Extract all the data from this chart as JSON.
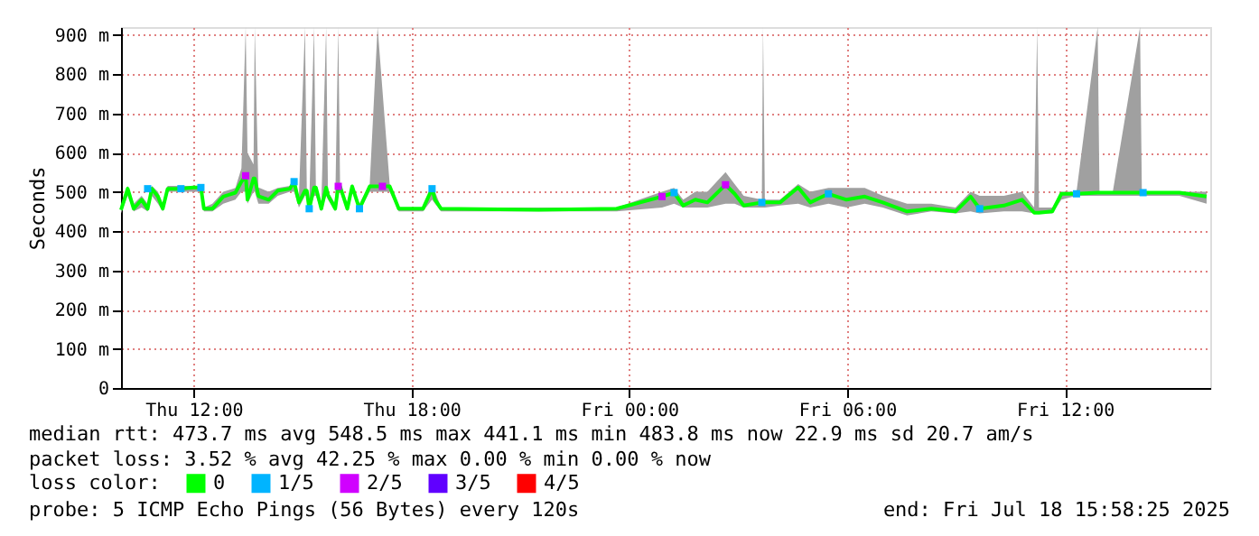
{
  "chart_data": {
    "type": "line",
    "ylabel": "Seconds",
    "legend_title": "loss color:",
    "legend": "bottom",
    "grid": true,
    "marker": "square",
    "xlim": [
      "2025-07-17T10:00",
      "2025-07-18T16:00"
    ],
    "ylim": [
      0,
      920
    ],
    "xticks": [
      {
        "value": "2025-07-17T12:00",
        "label": "Thu 12:00"
      },
      {
        "value": "2025-07-17T18:00",
        "label": "Thu 18:00"
      },
      {
        "value": "2025-07-18T00:00",
        "label": "Fri 00:00"
      },
      {
        "value": "2025-07-18T06:00",
        "label": "Fri 06:00"
      },
      {
        "value": "2025-07-18T12:00",
        "label": "Fri 12:00"
      }
    ],
    "yticks": [
      0,
      {
        "value": 100,
        "label": "100 m"
      },
      {
        "value": 200,
        "label": "200 m"
      },
      {
        "value": 300,
        "label": "300 m"
      },
      {
        "value": 400,
        "label": "400 m"
      },
      {
        "value": 500,
        "label": "500 m"
      },
      {
        "value": 600,
        "label": "600 m"
      },
      {
        "value": 700,
        "label": "700 m"
      },
      {
        "value": 800,
        "label": "800 m"
      },
      {
        "value": 900,
        "label": "900 m"
      }
    ],
    "annotations": [
      "median rtt:  473.7 ms avg  548.5 ms max  441.1 ms min  483.8 ms now  22.9 ms sd  20.7   am/s",
      "packet loss: 3.52 % avg  42.25 % max  0.00 % min  0.00 % now",
      "probe:       5 ICMP Echo Pings (56 Bytes) every 120s",
      "end: Fri Jul 18 15:58:25 2025"
    ],
    "series": [
      {
        "name": "0",
        "color": "#00ff00",
        "marker": "none",
        "x": [
          "2025-07-17T10:00",
          "2025-07-17T10:11",
          "2025-07-17T10:21",
          "2025-07-17T10:34",
          "2025-07-17T10:44",
          "2025-07-17T10:51",
          "2025-07-17T11:01",
          "2025-07-17T11:09",
          "2025-07-17T11:17",
          "2025-07-17T11:39",
          "2025-07-17T11:59",
          "2025-07-17T12:12",
          "2025-07-17T12:17",
          "2025-07-17T12:31",
          "2025-07-17T12:49",
          "2025-07-17T13:09",
          "2025-07-17T13:19",
          "2025-07-17T13:26",
          "2025-07-17T13:29",
          "2025-07-17T13:39",
          "2025-07-17T13:41",
          "2025-07-17T13:47",
          "2025-07-17T13:49",
          "2025-07-17T14:04",
          "2025-07-17T14:19",
          "2025-07-17T14:39",
          "2025-07-17T14:46",
          "2025-07-17T14:54",
          "2025-07-17T15:04",
          "2025-07-17T15:07",
          "2025-07-17T15:11",
          "2025-07-17T15:19",
          "2025-07-17T15:22",
          "2025-07-17T15:31",
          "2025-07-17T15:39",
          "2025-07-17T15:42",
          "2025-07-17T15:54",
          "2025-07-17T15:59",
          "2025-07-17T16:02",
          "2025-07-17T16:14",
          "2025-07-17T16:22",
          "2025-07-17T16:34",
          "2025-07-17T16:51",
          "2025-07-17T17:04",
          "2025-07-17T17:24",
          "2025-07-17T17:39",
          "2025-07-17T18:19",
          "2025-07-17T18:34",
          "2025-07-17T18:39",
          "2025-07-17T18:49",
          "2025-07-17T21:30",
          "2025-07-17T23:39",
          "2025-07-18T00:54",
          "2025-07-18T01:14",
          "2025-07-18T01:29",
          "2025-07-18T01:49",
          "2025-07-18T02:09",
          "2025-07-18T02:39",
          "2025-07-18T02:54",
          "2025-07-18T03:09",
          "2025-07-18T03:39",
          "2025-07-18T03:41",
          "2025-07-18T03:44",
          "2025-07-18T04:09",
          "2025-07-18T04:39",
          "2025-07-18T04:59",
          "2025-07-18T05:29",
          "2025-07-18T05:59",
          "2025-07-18T06:29",
          "2025-07-18T06:59",
          "2025-07-18T07:39",
          "2025-07-18T08:19",
          "2025-07-18T08:59",
          "2025-07-18T09:24",
          "2025-07-18T09:39",
          "2025-07-18T10:19",
          "2025-07-18T10:49",
          "2025-07-18T11:09",
          "2025-07-18T11:14",
          "2025-07-18T11:17",
          "2025-07-18T11:39",
          "2025-07-18T11:54",
          "2025-07-18T12:19",
          "2025-07-18T12:54",
          "2025-07-18T12:57",
          "2025-07-18T13:19",
          "2025-07-18T14:04",
          "2025-07-18T14:07",
          "2025-07-18T15:09",
          "2025-07-18T15:54"
        ],
        "values": [
          454,
          508,
          457,
          480,
          457,
          508,
          488,
          457,
          508,
          508,
          511,
          511,
          457,
          457,
          488,
          498,
          526,
          541,
          480,
          534,
          534,
          490,
          488,
          480,
          503,
          508,
          526,
          473,
          503,
          503,
          457,
          511,
          511,
          457,
          511,
          492,
          457,
          514,
          514,
          457,
          514,
          457,
          514,
          514,
          514,
          457,
          457,
          508,
          480,
          457,
          454,
          457,
          488,
          498,
          465,
          480,
          473,
          518,
          495,
          465,
          473,
          473,
          473,
          473,
          511,
          473,
          495,
          480,
          488,
          473,
          450,
          457,
          450,
          488,
          457,
          465,
          480,
          447,
          447,
          447,
          450,
          495,
          495,
          498,
          498,
          498,
          498,
          498,
          498,
          488
        ],
        "lower": [
          445,
          490,
          450,
          460,
          450,
          490,
          470,
          450,
          500,
          500,
          500,
          500,
          450,
          450,
          470,
          480,
          500,
          500,
          470,
          500,
          500,
          470,
          470,
          470,
          490,
          500,
          500,
          460,
          490,
          490,
          450,
          490,
          490,
          450,
          490,
          480,
          450,
          500,
          500,
          450,
          500,
          450,
          500,
          500,
          500,
          450,
          450,
          480,
          470,
          450,
          450,
          450,
          460,
          470,
          460,
          460,
          460,
          470,
          470,
          460,
          460,
          460,
          460,
          465,
          470,
          460,
          470,
          460,
          470,
          460,
          440,
          450,
          445,
          450,
          445,
          450,
          450,
          445,
          445,
          445,
          445,
          480,
          490,
          490,
          490,
          490,
          490,
          490,
          490,
          470
        ],
        "upper": [
          460,
          515,
          470,
          490,
          470,
          515,
          500,
          470,
          515,
          515,
          515,
          515,
          460,
          470,
          500,
          510,
          560,
          920,
          600,
          570,
          920,
          510,
          510,
          500,
          510,
          515,
          530,
          490,
          920,
          510,
          470,
          920,
          515,
          470,
          920,
          500,
          470,
          920,
          520,
          470,
          520,
          470,
          520,
          920,
          520,
          460,
          460,
          515,
          500,
          460,
          460,
          460,
          500,
          510,
          480,
          500,
          500,
          550,
          520,
          490,
          480,
          920,
          480,
          480,
          520,
          500,
          510,
          510,
          510,
          490,
          470,
          470,
          460,
          500,
          490,
          490,
          500,
          460,
          920,
          460,
          460,
          500,
          500,
          920,
          500,
          500,
          920,
          500,
          500,
          500
        ]
      },
      {
        "name": "1/5",
        "type": "scatter",
        "color": "#00b4ff",
        "x": [
          "2025-07-17T10:44",
          "2025-07-17T11:39",
          "2025-07-17T12:12",
          "2025-07-17T14:46",
          "2025-07-17T15:11",
          "2025-07-17T16:34",
          "2025-07-17T18:34",
          "2025-07-18T01:14",
          "2025-07-18T03:39",
          "2025-07-18T05:29",
          "2025-07-18T09:39",
          "2025-07-18T12:19",
          "2025-07-18T14:09"
        ],
        "values": [
          508,
          508,
          511,
          526,
          457,
          457,
          508,
          498,
          473,
          495,
          457,
          495,
          498
        ]
      },
      {
        "name": "2/5",
        "type": "scatter",
        "color": "#d000ff",
        "x": [
          "2025-07-17T13:26",
          "2025-07-17T15:59",
          "2025-07-17T17:12",
          "2025-07-18T00:54",
          "2025-07-18T02:39"
        ],
        "values": [
          541,
          514,
          514,
          488,
          518
        ]
      },
      {
        "name": "3/5",
        "type": "scatter",
        "color": "#6000ff"
      },
      {
        "name": "4/5",
        "type": "scatter",
        "color": "#ff0000"
      }
    ]
  }
}
